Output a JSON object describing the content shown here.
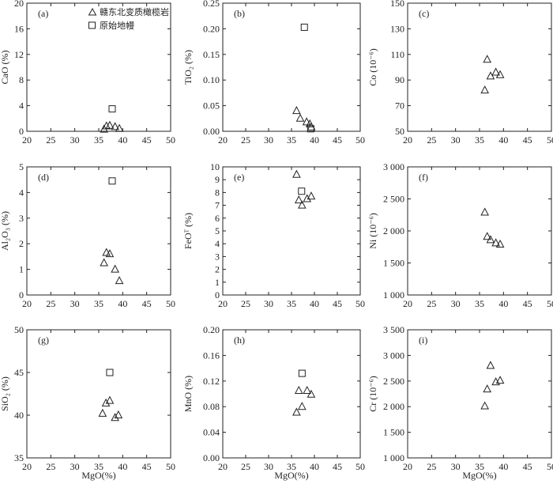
{
  "legend": {
    "triangle": "赣东北变质橄榄岩",
    "square": "原始地幔"
  },
  "chart_data": [
    {
      "id": "a",
      "type": "scatter",
      "panel_label": "(a)",
      "ylabel": "CaO (%)",
      "xlabel": "",
      "xlim": [
        20,
        50
      ],
      "xticks": [
        "20",
        "25",
        "30",
        "35",
        "40",
        "45",
        "50"
      ],
      "ylim": [
        0,
        20
      ],
      "yticks": [
        "0",
        "4",
        "8",
        "12",
        "16",
        "20"
      ],
      "series": [
        {
          "name": "赣东北变质橄榄岩",
          "marker": "triangle",
          "x": [
            36.1,
            36.6,
            37.3,
            38.4,
            39.3
          ],
          "y": [
            0.3,
            0.8,
            0.9,
            0.7,
            0.4
          ]
        },
        {
          "name": "原始地幔",
          "marker": "square",
          "x": [
            37.8
          ],
          "y": [
            3.5
          ]
        }
      ]
    },
    {
      "id": "b",
      "type": "scatter",
      "panel_label": "(b)",
      "ylabel": "TiO₂ (%)",
      "xlabel": "",
      "xlim": [
        20,
        50
      ],
      "xticks": [
        "20",
        "25",
        "30",
        "35",
        "40",
        "45",
        "50"
      ],
      "ylim": [
        0,
        0.25
      ],
      "yticks": [
        "0.00",
        "0.05",
        "0.10",
        "0.15",
        "0.20",
        "0.25"
      ],
      "series": [
        {
          "name": "赣东北变质橄榄岩",
          "marker": "triangle",
          "x": [
            36.1,
            36.9,
            38.3,
            39.0,
            39.3
          ],
          "y": [
            0.04,
            0.025,
            0.018,
            0.014,
            0.008
          ]
        },
        {
          "name": "原始地幔",
          "marker": "square",
          "x": [
            37.8,
            39.2
          ],
          "y": [
            0.203,
            0.005
          ]
        }
      ]
    },
    {
      "id": "c",
      "type": "scatter",
      "panel_label": "(c)",
      "ylabel": "Co (10⁻⁶)",
      "xlabel": "",
      "xlim": [
        20,
        50
      ],
      "xticks": [
        "20",
        "25",
        "30",
        "35",
        "40",
        "45",
        "50"
      ],
      "ylim": [
        50,
        150
      ],
      "yticks": [
        "50",
        "70",
        "90",
        "110",
        "130",
        "150"
      ],
      "series": [
        {
          "name": "赣东北变质橄榄岩",
          "marker": "triangle",
          "x": [
            36.1,
            36.6,
            37.3,
            38.4,
            39.3
          ],
          "y": [
            82,
            106,
            93,
            96,
            94
          ]
        }
      ]
    },
    {
      "id": "d",
      "type": "scatter",
      "panel_label": "(d)",
      "ylabel": "Al₂O₃ (%)",
      "xlabel": "",
      "xlim": [
        20,
        50
      ],
      "xticks": [
        "20",
        "25",
        "30",
        "35",
        "40",
        "45",
        "50"
      ],
      "ylim": [
        0,
        5
      ],
      "yticks": [
        "0",
        "1",
        "2",
        "3",
        "4",
        "5"
      ],
      "series": [
        {
          "name": "赣东北变质橄榄岩",
          "marker": "triangle",
          "x": [
            36.1,
            36.6,
            37.3,
            38.4,
            39.3
          ],
          "y": [
            1.25,
            1.65,
            1.6,
            1.0,
            0.55
          ]
        },
        {
          "name": "原始地幔",
          "marker": "square",
          "x": [
            37.8
          ],
          "y": [
            4.45
          ]
        }
      ]
    },
    {
      "id": "e",
      "type": "scatter",
      "panel_label": "(e)",
      "ylabel": "FeOᵀ (%)",
      "xlabel": "",
      "xlim": [
        20,
        50
      ],
      "xticks": [
        "20",
        "25",
        "30",
        "35",
        "40",
        "45",
        "50"
      ],
      "ylim": [
        0,
        10
      ],
      "yticks": [
        "0",
        "1",
        "2",
        "3",
        "4",
        "5",
        "6",
        "7",
        "8",
        "9",
        "10"
      ],
      "series": [
        {
          "name": "赣东北变质橄榄岩",
          "marker": "triangle",
          "x": [
            36.1,
            36.6,
            37.3,
            38.4,
            39.3
          ],
          "y": [
            9.4,
            7.4,
            7.0,
            7.5,
            7.7
          ]
        },
        {
          "name": "原始地幔",
          "marker": "square",
          "x": [
            37.2
          ],
          "y": [
            8.1
          ]
        }
      ]
    },
    {
      "id": "f",
      "type": "scatter",
      "panel_label": "(f)",
      "ylabel": "Ni (10⁻⁶)",
      "xlabel": "",
      "xlim": [
        20,
        50
      ],
      "xticks": [
        "20",
        "25",
        "30",
        "35",
        "40",
        "45",
        "50"
      ],
      "ylim": [
        1000,
        3000
      ],
      "yticks": [
        "1 000",
        "1 500",
        "2 000",
        "2 500",
        "3 000"
      ],
      "series": [
        {
          "name": "赣东北变质橄榄岩",
          "marker": "triangle",
          "x": [
            36.1,
            36.6,
            37.3,
            38.4,
            39.3
          ],
          "y": [
            2290,
            1910,
            1860,
            1810,
            1790
          ]
        }
      ]
    },
    {
      "id": "g",
      "type": "scatter",
      "panel_label": "(g)",
      "ylabel": "SiO₂ (%)",
      "xlabel": "MgO(%)",
      "xlim": [
        20,
        50
      ],
      "xticks": [
        "20",
        "25",
        "30",
        "35",
        "40",
        "45",
        "50"
      ],
      "ylim": [
        35,
        50
      ],
      "yticks": [
        "35",
        "40",
        "45",
        "50"
      ],
      "series": [
        {
          "name": "赣东北变质橄榄岩",
          "marker": "triangle",
          "x": [
            35.8,
            36.5,
            37.3,
            38.4,
            39.1
          ],
          "y": [
            40.2,
            41.4,
            41.7,
            39.7,
            40.0
          ]
        },
        {
          "name": "原始地幔",
          "marker": "square",
          "x": [
            37.3
          ],
          "y": [
            45.0
          ]
        }
      ]
    },
    {
      "id": "h",
      "type": "scatter",
      "panel_label": "(h)",
      "ylabel": "MnO (%)",
      "xlabel": "MgO(%)",
      "xlim": [
        20,
        50
      ],
      "xticks": [
        "20",
        "25",
        "30",
        "35",
        "40",
        "45",
        "50"
      ],
      "ylim": [
        0,
        0.2
      ],
      "yticks": [
        "0.00",
        "0.04",
        "0.08",
        "0.12",
        "0.16",
        "0.20"
      ],
      "series": [
        {
          "name": "赣东北变质橄榄岩",
          "marker": "triangle",
          "x": [
            36.1,
            36.6,
            37.3,
            38.4,
            39.3
          ],
          "y": [
            0.071,
            0.105,
            0.08,
            0.105,
            0.099
          ]
        },
        {
          "name": "原始地幔",
          "marker": "square",
          "x": [
            37.3
          ],
          "y": [
            0.132
          ]
        }
      ]
    },
    {
      "id": "i",
      "type": "scatter",
      "panel_label": "(i)",
      "ylabel": "Cr (10⁻⁶)",
      "xlabel": "MgO(%)",
      "xlim": [
        20,
        50
      ],
      "xticks": [
        "20",
        "25",
        "30",
        "35",
        "40",
        "45",
        "50"
      ],
      "ylim": [
        1000,
        3500
      ],
      "yticks": [
        "1 000",
        "1 500",
        "2 000",
        "2 500",
        "3 000",
        "3 500"
      ],
      "series": [
        {
          "name": "赣东北变质橄榄岩",
          "marker": "triangle",
          "x": [
            36.1,
            36.6,
            37.3,
            38.4,
            39.3
          ],
          "y": [
            2010,
            2340,
            2800,
            2480,
            2510
          ]
        }
      ]
    }
  ]
}
